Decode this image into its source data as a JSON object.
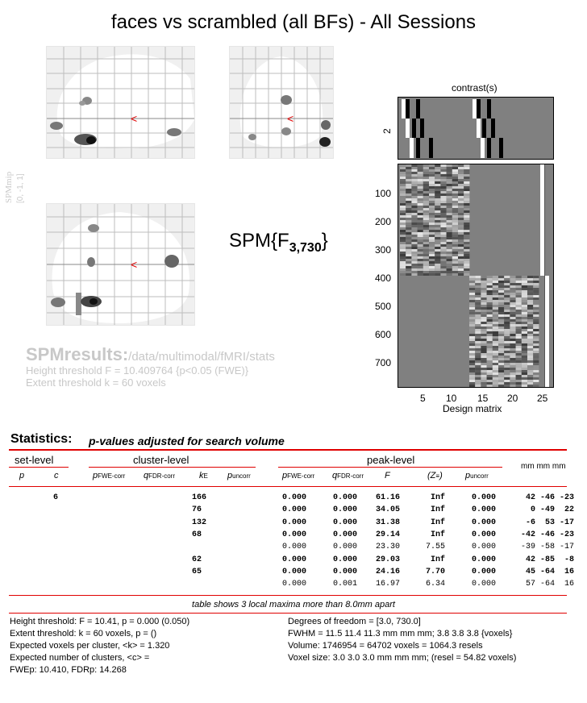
{
  "title": "faces vs scrambled (all BFs) - All Sessions",
  "mip_label": "SPMmip",
  "mip_range": "[0, -1, 1]",
  "spm_stat": {
    "prefix": "SPM{F",
    "subscript": "3,730",
    "suffix": "}"
  },
  "results": {
    "heading": "SPMresults:",
    "path": "/data/multimodal/fMRI/stats",
    "height_threshold": "Height threshold F = 10.409764  {p<0.05 (FWE)}",
    "extent_threshold": "Extent threshold k = 60 voxels"
  },
  "design": {
    "contrast_label": "contrast(s)",
    "contrast_tick": "2",
    "y_ticks": [
      "100",
      "200",
      "300",
      "400",
      "500",
      "600",
      "700"
    ],
    "x_ticks": [
      "5",
      "10",
      "15",
      "20",
      "25"
    ],
    "xlabel": "Design matrix"
  },
  "stats": {
    "title": "Statistics:",
    "subtitle": "p-values adjusted for search volume",
    "groups": {
      "set": "set-level",
      "cluster": "cluster-level",
      "peak": "peak-level",
      "mm": "mm mm mm"
    },
    "cols": {
      "p": "p",
      "c": "c",
      "pfwe": "p",
      "pfwe_sub": "FWE-corr",
      "qfdr": "q",
      "qfdr_sub": "FDR-corr",
      "ke": "k",
      "ke_sub": "E",
      "punc": "p",
      "punc_sub": "uncorr",
      "ppfwe": "p",
      "ppfwe_sub": "FWE-corr",
      "pqfdr": "q",
      "pqfdr_sub": "FDR-corr",
      "f": "F",
      "z": "(Z",
      "z_sub": "≡",
      "z_end": ")",
      "ppunc": "p",
      "ppunc_sub": "uncorr"
    },
    "rows": [
      {
        "c": "6",
        "ke": "166",
        "pfwe": "0.000",
        "qfdr": "0.000",
        "f": "61.16",
        "z": "Inf",
        "punc": "0.000",
        "xyz": "42 -46 -23",
        "bold": true
      },
      {
        "c": "",
        "ke": "76",
        "pfwe": "0.000",
        "qfdr": "0.000",
        "f": "34.05",
        "z": "Inf",
        "punc": "0.000",
        "xyz": "0 -49  22",
        "bold": true
      },
      {
        "c": "",
        "ke": "132",
        "pfwe": "0.000",
        "qfdr": "0.000",
        "f": "31.38",
        "z": "Inf",
        "punc": "0.000",
        "xyz": "-6  53 -17",
        "bold": true
      },
      {
        "c": "",
        "ke": "68",
        "pfwe": "0.000",
        "qfdr": "0.000",
        "f": "29.14",
        "z": "Inf",
        "punc": "0.000",
        "xyz": "-42 -46 -23",
        "bold": true
      },
      {
        "c": "",
        "ke": "",
        "pfwe": "0.000",
        "qfdr": "0.000",
        "f": "23.30",
        "z": "7.55",
        "punc": "0.000",
        "xyz": "-39 -58 -17",
        "bold": false
      },
      {
        "c": "",
        "ke": "62",
        "pfwe": "0.000",
        "qfdr": "0.000",
        "f": "29.03",
        "z": "Inf",
        "punc": "0.000",
        "xyz": "42 -85  -8",
        "bold": true
      },
      {
        "c": "",
        "ke": "65",
        "pfwe": "0.000",
        "qfdr": "0.000",
        "f": "24.16",
        "z": "7.70",
        "punc": "0.000",
        "xyz": "45 -64  16",
        "bold": true
      },
      {
        "c": "",
        "ke": "",
        "pfwe": "0.000",
        "qfdr": "0.001",
        "f": "16.97",
        "z": "6.34",
        "punc": "0.000",
        "xyz": "57 -64  16",
        "bold": false
      }
    ],
    "note": "table shows 3 local maxima more than 8.0mm apart"
  },
  "footer": {
    "left": [
      "Height threshold: F = 10.41, p = 0.000 (0.050)",
      "Extent threshold: k = 60 voxels, p =  ()",
      "Expected voxels per cluster, <k> = 1.320",
      "Expected number of clusters, <c> =",
      "FWEp: 10.410, FDRp: 14.268"
    ],
    "right": [
      "Degrees of freedom = [3.0, 730.0]",
      "FWHM = 11.5 11.4 11.3 mm mm mm; 3.8 3.8 3.8 {voxels}",
      "Volume: 1746954 = 64702 voxels = 1064.3 resels",
      "Voxel size: 3.0 3.0 3.0 mm mm mm; (resel = 54.82 voxels)"
    ]
  },
  "colors": {
    "accent_red": "#e00000",
    "grey_text": "#c8c8c8"
  }
}
